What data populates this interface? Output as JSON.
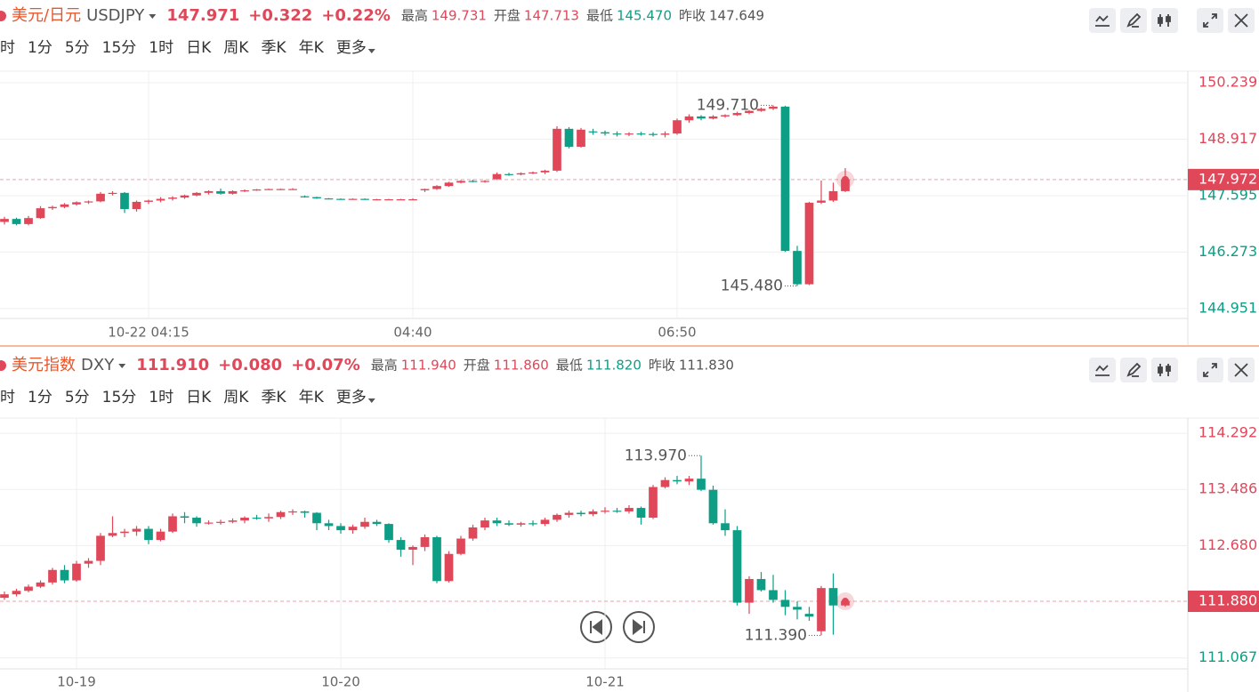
{
  "panels": [
    {
      "name": "美元/日元",
      "symbol": "USDJPY",
      "price": "147.971",
      "change": "+0.322",
      "change_pct": "+0.22%",
      "stats": [
        {
          "label": "最高",
          "value": "149.731",
          "color": "#e0485a"
        },
        {
          "label": "开盘",
          "value": "147.713",
          "color": "#e0485a"
        },
        {
          "label": "最低",
          "value": "145.470",
          "color": "#0e9e86"
        },
        {
          "label": "昨收",
          "value": "147.649",
          "color": "#555555"
        }
      ],
      "periods": [
        "时",
        "1分",
        "5分",
        "15分",
        "1时",
        "日K",
        "周K",
        "季K",
        "年K",
        "更多"
      ],
      "active_period": 2
    },
    {
      "name": "美元指数",
      "symbol": "DXY",
      "price": "111.910",
      "change": "+0.080",
      "change_pct": "+0.07%",
      "stats": [
        {
          "label": "最高",
          "value": "111.940",
          "color": "#e0485a"
        },
        {
          "label": "开盘",
          "value": "111.860",
          "color": "#e0485a"
        },
        {
          "label": "最低",
          "value": "111.820",
          "color": "#0e9e86"
        },
        {
          "label": "昨收",
          "value": "111.830",
          "color": "#555555"
        }
      ],
      "periods": [
        "时",
        "1分",
        "5分",
        "15分",
        "1时",
        "日K",
        "周K",
        "季K",
        "年K",
        "更多"
      ],
      "active_period": 4
    }
  ],
  "chart_data": [
    {
      "type": "candlestick",
      "up_color": "#e0485a",
      "down_color": "#0e9e86",
      "grid": true,
      "categories": [
        null,
        null,
        null,
        null,
        null,
        null,
        null,
        null,
        null,
        null,
        null,
        null,
        "10-22 04:15",
        null,
        null,
        null,
        null,
        null,
        null,
        null,
        null,
        null,
        null,
        null,
        null,
        null,
        null,
        null,
        null,
        null,
        null,
        null,
        null,
        null,
        "04:40",
        null,
        null,
        null,
        null,
        null,
        null,
        null,
        null,
        null,
        null,
        null,
        null,
        null,
        null,
        null,
        null,
        null,
        null,
        null,
        null,
        null,
        "06:50",
        null,
        null,
        null,
        null,
        null,
        null,
        null,
        null,
        null,
        null,
        null,
        null,
        null,
        null
      ],
      "open": [
        146.98,
        147.05,
        146.93,
        147.07,
        147.3,
        147.33,
        147.39,
        147.44,
        147.46,
        147.64,
        147.66,
        147.28,
        147.45,
        147.48,
        147.52,
        147.55,
        147.6,
        147.66,
        147.7,
        147.64,
        147.7,
        147.72,
        147.74,
        147.75,
        147.75,
        147.58,
        147.56,
        147.53,
        147.52,
        147.51,
        147.52,
        147.51,
        147.51,
        147.51,
        147.51,
        147.72,
        147.75,
        147.82,
        147.9,
        147.94,
        147.93,
        147.98,
        148.1,
        148.09,
        148.12,
        148.14,
        148.18,
        149.16,
        148.74,
        149.1,
        149.08,
        149.05,
        149.03,
        149.05,
        149.04,
        149.02,
        149.05,
        149.36,
        149.45,
        149.4,
        149.45,
        149.48,
        149.53,
        149.58,
        149.63,
        149.68,
        146.3,
        145.52,
        147.43,
        147.48,
        147.7
      ],
      "high": [
        147.1,
        147.08,
        147.12,
        147.35,
        147.36,
        147.42,
        147.46,
        147.48,
        147.68,
        147.7,
        147.68,
        147.48,
        147.5,
        147.56,
        147.58,
        147.62,
        147.68,
        147.72,
        147.76,
        147.72,
        147.74,
        147.75,
        147.76,
        147.76,
        147.77,
        147.6,
        147.57,
        147.54,
        147.53,
        147.53,
        147.53,
        147.52,
        147.52,
        147.52,
        147.53,
        147.76,
        147.84,
        147.92,
        147.96,
        147.97,
        147.96,
        148.14,
        148.13,
        148.14,
        148.16,
        148.2,
        149.22,
        149.2,
        149.18,
        149.16,
        149.12,
        149.1,
        149.08,
        149.09,
        149.08,
        149.1,
        149.4,
        149.5,
        149.48,
        149.48,
        149.5,
        149.56,
        149.6,
        149.66,
        149.71,
        149.7,
        146.42,
        147.45,
        147.95,
        147.9,
        148.24
      ],
      "low": [
        146.92,
        146.9,
        146.9,
        147.05,
        147.26,
        147.3,
        147.36,
        147.4,
        147.44,
        147.6,
        147.19,
        147.22,
        147.4,
        147.44,
        147.48,
        147.52,
        147.58,
        147.62,
        147.62,
        147.62,
        147.68,
        147.71,
        147.73,
        147.74,
        147.73,
        147.55,
        147.52,
        147.51,
        147.5,
        147.5,
        147.5,
        147.5,
        147.5,
        147.5,
        147.5,
        147.68,
        147.73,
        147.8,
        147.88,
        147.91,
        147.9,
        147.96,
        148.06,
        148.07,
        148.1,
        148.1,
        148.15,
        148.7,
        148.72,
        149.02,
        149.0,
        148.98,
        148.99,
        149.0,
        148.98,
        148.96,
        149.02,
        149.3,
        149.36,
        149.38,
        149.42,
        149.46,
        149.5,
        149.56,
        149.6,
        146.28,
        145.48,
        145.5,
        147.4,
        147.45,
        147.68
      ],
      "close": [
        147.05,
        146.93,
        147.07,
        147.3,
        147.33,
        147.39,
        147.44,
        147.46,
        147.64,
        147.66,
        147.28,
        147.45,
        147.48,
        147.52,
        147.55,
        147.6,
        147.66,
        147.7,
        147.64,
        147.7,
        147.72,
        147.74,
        147.75,
        147.75,
        147.75,
        147.56,
        147.53,
        147.52,
        147.51,
        147.52,
        147.51,
        147.51,
        147.51,
        147.51,
        147.51,
        147.75,
        147.82,
        147.9,
        147.94,
        147.93,
        147.94,
        148.1,
        148.09,
        148.12,
        148.14,
        148.18,
        149.16,
        148.74,
        149.14,
        149.08,
        149.05,
        149.03,
        149.05,
        149.04,
        149.02,
        149.05,
        149.36,
        149.45,
        149.4,
        149.45,
        149.48,
        149.53,
        149.58,
        149.63,
        149.68,
        146.3,
        145.52,
        147.43,
        147.48,
        147.7,
        147.972
      ],
      "ylim": [
        144.72,
        150.51
      ],
      "yticks": [
        150.239,
        148.917,
        147.595,
        146.273,
        144.951
      ],
      "last_price": {
        "value": 147.972,
        "label": "147.972"
      },
      "high_label": {
        "value": 149.71,
        "label": "149.710"
      },
      "low_label": {
        "value": 145.48,
        "label": "145.480"
      }
    },
    {
      "type": "candlestick",
      "up_color": "#e0485a",
      "down_color": "#0e9e86",
      "grid": true,
      "categories": [
        null,
        null,
        null,
        null,
        null,
        null,
        "10-19",
        null,
        null,
        null,
        null,
        null,
        null,
        null,
        null,
        null,
        null,
        null,
        null,
        null,
        null,
        null,
        null,
        null,
        null,
        null,
        null,
        null,
        "10-20",
        null,
        null,
        null,
        null,
        null,
        null,
        null,
        null,
        null,
        null,
        null,
        null,
        null,
        null,
        null,
        null,
        null,
        null,
        null,
        null,
        null,
        "10-21",
        null,
        null,
        null,
        null,
        null,
        null,
        null,
        null,
        null,
        null,
        null,
        null,
        null,
        null,
        null,
        null,
        null,
        null,
        null,
        null
      ],
      "open": [
        111.93,
        111.98,
        112.03,
        112.09,
        112.15,
        112.33,
        112.18,
        112.42,
        112.46,
        112.82,
        112.86,
        112.88,
        112.92,
        112.76,
        112.88,
        113.1,
        113.08,
        113.0,
        113.01,
        113.02,
        113.04,
        113.08,
        113.07,
        113.09,
        113.16,
        113.17,
        113.15,
        113.0,
        112.96,
        112.9,
        112.95,
        113.02,
        112.99,
        112.76,
        112.62,
        112.66,
        112.8,
        112.17,
        112.56,
        112.78,
        112.94,
        113.04,
        113.0,
        112.98,
        113.0,
        112.99,
        113.05,
        113.12,
        113.15,
        113.13,
        113.17,
        113.18,
        113.17,
        113.22,
        113.08,
        113.52,
        113.62,
        113.6,
        113.64,
        113.48,
        113.0,
        112.9,
        111.86,
        112.2,
        112.04,
        111.9,
        111.8,
        111.7,
        111.45,
        112.07,
        111.82
      ],
      "high": [
        112.02,
        112.06,
        112.12,
        112.18,
        112.36,
        112.4,
        112.46,
        112.5,
        112.86,
        113.1,
        112.92,
        112.96,
        112.96,
        112.92,
        113.14,
        113.16,
        113.1,
        113.04,
        113.05,
        113.07,
        113.1,
        113.12,
        113.14,
        113.18,
        113.2,
        113.18,
        113.16,
        113.05,
        113.0,
        112.98,
        113.08,
        113.05,
        113.0,
        112.8,
        112.68,
        112.84,
        112.82,
        112.6,
        112.82,
        112.98,
        113.08,
        113.08,
        113.04,
        113.02,
        113.04,
        113.08,
        113.14,
        113.18,
        113.18,
        113.2,
        113.23,
        113.22,
        113.26,
        113.24,
        113.55,
        113.66,
        113.68,
        113.68,
        113.97,
        113.54,
        113.2,
        112.96,
        112.24,
        112.3,
        112.26,
        112.04,
        111.88,
        111.8,
        112.1,
        112.28,
        111.92
      ],
      "low": [
        111.9,
        111.95,
        112.01,
        112.07,
        112.12,
        112.14,
        112.16,
        112.36,
        112.4,
        112.8,
        112.8,
        112.82,
        112.7,
        112.74,
        112.86,
        113.0,
        112.95,
        112.98,
        112.98,
        113.0,
        113.0,
        113.05,
        113.02,
        113.06,
        113.12,
        113.08,
        112.9,
        112.9,
        112.85,
        112.85,
        112.92,
        112.96,
        112.72,
        112.52,
        112.4,
        112.6,
        112.14,
        112.15,
        112.54,
        112.75,
        112.9,
        112.96,
        112.96,
        112.95,
        112.96,
        112.96,
        113.02,
        113.08,
        113.1,
        113.1,
        113.14,
        113.15,
        113.14,
        112.98,
        113.06,
        113.5,
        113.56,
        113.55,
        113.46,
        112.98,
        112.82,
        111.82,
        111.7,
        112.02,
        111.86,
        111.68,
        111.62,
        111.6,
        111.39,
        111.4,
        111.8
      ],
      "close": [
        111.98,
        112.03,
        112.09,
        112.15,
        112.33,
        112.18,
        112.42,
        112.46,
        112.82,
        112.86,
        112.88,
        112.92,
        112.76,
        112.88,
        113.1,
        113.08,
        113.0,
        113.01,
        113.02,
        113.04,
        113.08,
        113.07,
        113.09,
        113.16,
        113.17,
        113.15,
        113.0,
        112.96,
        112.9,
        112.95,
        113.02,
        112.99,
        112.76,
        112.62,
        112.66,
        112.8,
        112.17,
        112.56,
        112.78,
        112.94,
        113.04,
        113.0,
        112.98,
        113.0,
        112.99,
        113.05,
        113.12,
        113.15,
        113.13,
        113.17,
        113.18,
        113.17,
        113.22,
        113.08,
        113.52,
        113.62,
        113.6,
        113.64,
        113.48,
        113.0,
        112.9,
        111.86,
        112.2,
        112.04,
        111.9,
        111.8,
        111.76,
        111.66,
        112.07,
        111.82,
        111.88
      ],
      "ylim": [
        110.91,
        114.51
      ],
      "yticks": [
        114.292,
        113.486,
        {
          "value": 112.68,
          "label": "112.680"
        },
        111.067
      ],
      "last_price": {
        "value": 111.88,
        "label": "111.880"
      },
      "high_label": {
        "value": 113.97,
        "label": "113.970"
      },
      "low_label": {
        "value": 111.39,
        "label": "111.390"
      }
    }
  ]
}
